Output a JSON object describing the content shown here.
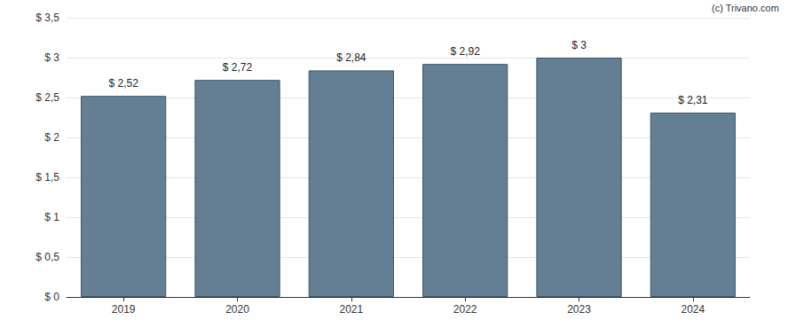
{
  "chart_data": {
    "type": "bar",
    "categories": [
      "2019",
      "2020",
      "2021",
      "2022",
      "2023",
      "2024"
    ],
    "values": [
      2.52,
      2.72,
      2.84,
      2.92,
      3,
      2.31
    ],
    "value_labels": [
      "$ 2,52",
      "$ 2,72",
      "$ 2,84",
      "$ 2,92",
      "$ 3",
      "$ 2,31"
    ],
    "data_labels": true,
    "color": "#647f94",
    "ylim": [
      0,
      3.5
    ],
    "yticks": [
      {
        "value": 0,
        "label": "$ 0"
      },
      {
        "value": 0.5,
        "label": "$ 0,5"
      },
      {
        "value": 1,
        "label": "$ 1"
      },
      {
        "value": 1.5,
        "label": "$ 1,5"
      },
      {
        "value": 2,
        "label": "$ 2"
      },
      {
        "value": 2.5,
        "label": "$ 2,5"
      },
      {
        "value": 3,
        "label": "$ 3"
      },
      {
        "value": 3.5,
        "label": "$ 3,5"
      }
    ],
    "grid": true,
    "annotations": [
      "(c) Trivano.com"
    ]
  }
}
